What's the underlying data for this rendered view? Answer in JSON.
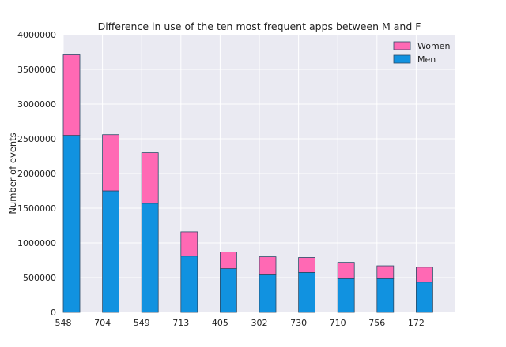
{
  "chart_data": {
    "type": "bar",
    "stacked": true,
    "title": "Difference in use of the ten most frequent apps between M and F",
    "xlabel": "",
    "ylabel": "Number of events",
    "categories": [
      "548",
      "704",
      "549",
      "713",
      "405",
      "302",
      "730",
      "710",
      "756",
      "172"
    ],
    "series": [
      {
        "name": "Men",
        "color": "#1192e0",
        "values": [
          2550000,
          1750000,
          1570000,
          810000,
          630000,
          540000,
          575000,
          485000,
          485000,
          435000
        ]
      },
      {
        "name": "Women",
        "color": "#ff69b4",
        "values": [
          1160000,
          810000,
          730000,
          350000,
          240000,
          260000,
          215000,
          235000,
          185000,
          215000
        ]
      }
    ],
    "ylim": [
      0,
      4000000
    ],
    "yticks": [
      "0",
      "500000",
      "1000000",
      "1500000",
      "2000000",
      "2500000",
      "3000000",
      "3500000",
      "4000000"
    ],
    "grid": true,
    "legend": {
      "position": "top-right",
      "entries": [
        "Women",
        "Men"
      ]
    }
  },
  "colors": {
    "plot_background": "#eaeaf2",
    "grid": "#ffffff",
    "bar_edge": "#2b4a66"
  }
}
